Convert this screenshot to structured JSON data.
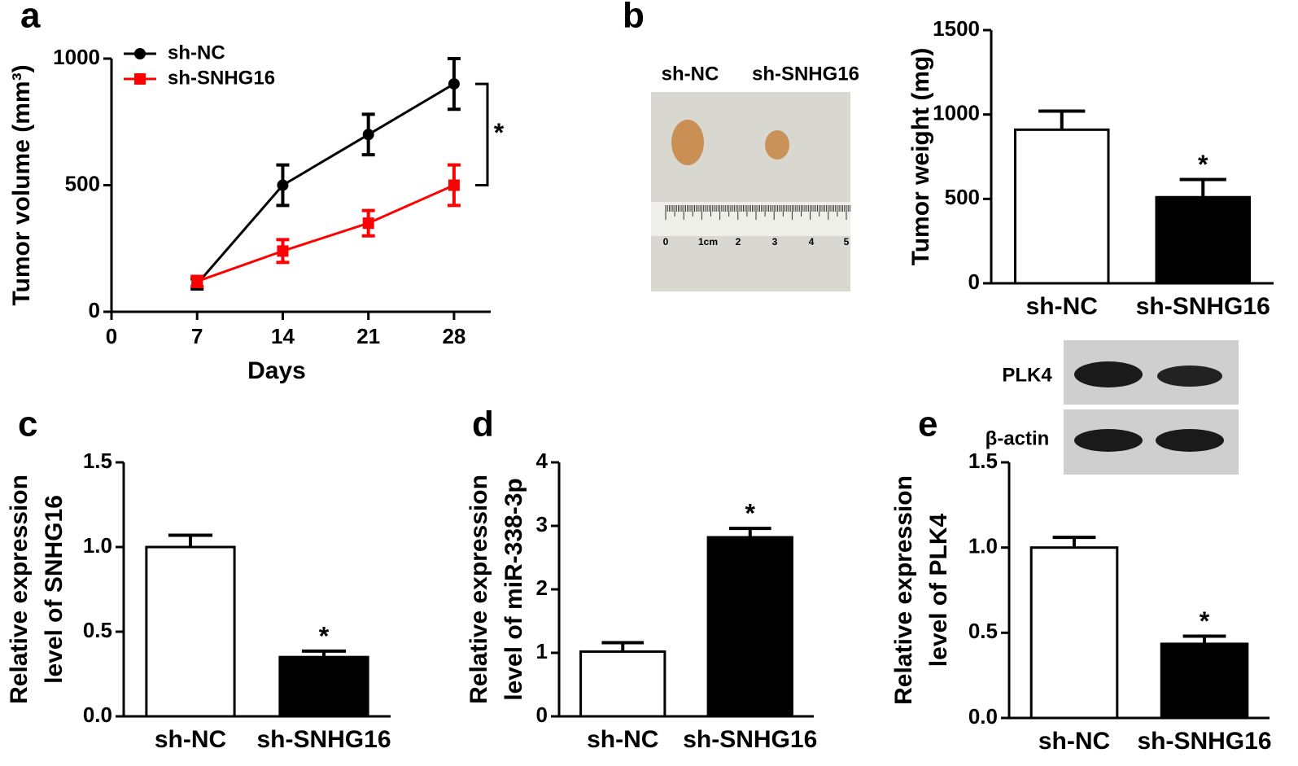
{
  "chart_data": [
    {
      "type": "line",
      "panel": "a",
      "x_label": "Days",
      "y_label": "Tumor volume (mm³)",
      "x": [
        7,
        14,
        21,
        28
      ],
      "xlim": [
        0,
        31
      ],
      "xticks": [
        0,
        7,
        14,
        21,
        28
      ],
      "ylim": [
        0,
        1000
      ],
      "yticks": [
        0,
        500,
        1000
      ],
      "legend": "top-left",
      "annotation": "*",
      "series": [
        {
          "name": "sh-NC",
          "color": "#000000",
          "marker": "circle",
          "values": [
            110,
            500,
            700,
            900
          ],
          "errors": [
            20,
            80,
            80,
            100
          ]
        },
        {
          "name": "sh-SNHG16",
          "color": "#ff0000",
          "marker": "square",
          "values": [
            120,
            240,
            350,
            500
          ],
          "errors": [
            20,
            45,
            50,
            80
          ]
        }
      ]
    },
    {
      "type": "bar",
      "panel": "b",
      "y_label": "Tumor weight (mg)",
      "categories": [
        "sh-NC",
        "sh-SNHG16"
      ],
      "values": [
        910,
        510
      ],
      "errors": [
        110,
        105
      ],
      "colors": [
        "#ffffff",
        "#000000"
      ],
      "ylim": [
        0,
        1500
      ],
      "yticks": [
        0,
        500,
        1000,
        1500
      ],
      "annotation": "*"
    },
    {
      "type": "bar",
      "panel": "c",
      "y_label": [
        "Relative expression",
        "level of SNHG16"
      ],
      "categories": [
        "sh-NC",
        "sh-SNHG16"
      ],
      "values": [
        1.0,
        0.35
      ],
      "errors": [
        0.07,
        0.035
      ],
      "colors": [
        "#ffffff",
        "#000000"
      ],
      "ylim": [
        0,
        1.5
      ],
      "yticks": [
        {
          "value": 0,
          "label": "0.0"
        },
        0.5,
        {
          "value": 1,
          "label": "1.0"
        },
        1.5
      ],
      "annotation": "*"
    },
    {
      "type": "bar",
      "panel": "d",
      "y_label": [
        "Relative expression",
        "level of miR-338-3p"
      ],
      "categories": [
        "sh-NC",
        "sh-SNHG16"
      ],
      "values": [
        1.02,
        2.82
      ],
      "errors": [
        0.14,
        0.14
      ],
      "colors": [
        "#ffffff",
        "#000000"
      ],
      "ylim": [
        0,
        4
      ],
      "yticks": [
        0,
        1,
        2,
        3,
        4
      ],
      "annotation": "*"
    },
    {
      "type": "bar",
      "panel": "e",
      "y_label": [
        "Relative expression",
        "level of PLK4"
      ],
      "categories": [
        "sh-NC",
        "sh-SNHG16"
      ],
      "values": [
        1.0,
        0.435
      ],
      "errors": [
        0.06,
        0.045
      ],
      "colors": [
        "#ffffff",
        "#000000"
      ],
      "ylim": [
        0,
        1.5
      ],
      "yticks": [
        {
          "value": 0,
          "label": "0.0"
        },
        0.5,
        {
          "value": 1,
          "label": "1.0"
        },
        1.5
      ],
      "annotation": "*"
    }
  ],
  "photo": {
    "labels": [
      "sh-NC",
      "sh-SNHG16"
    ],
    "ruler": [
      "0",
      "1cm",
      "2",
      "3",
      "4",
      "5"
    ]
  },
  "blot": {
    "labels": [
      "PLK4",
      "β-actin"
    ]
  }
}
